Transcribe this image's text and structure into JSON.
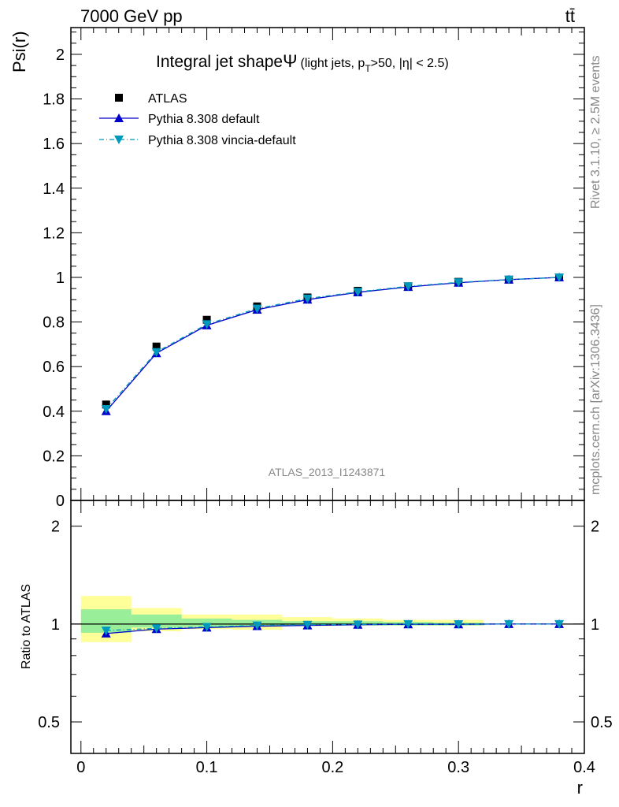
{
  "header": {
    "energy_label": "7000 GeV pp",
    "process_label": "tt̄"
  },
  "side_labels": {
    "rivet": "Rivet 3.1.10, ≥ 2.5M events",
    "mcplots": "mcplots.cern.ch [arXiv:1306.3436]"
  },
  "watermark": "ATLAS_2013_I1243871",
  "chart_data": [
    {
      "type": "line",
      "title_main": "Integral jet shape",
      "title_symbol": "Ψ",
      "title_sub_open": "(light jets, p",
      "title_sub_T": "T",
      "title_sub_close": ">50, |η| < 2.5)",
      "ylabel": "Psi(r)",
      "xlabel": "r",
      "xlim": [
        -0.008,
        0.4
      ],
      "ylim": [
        0,
        2.12
      ],
      "yticks": [
        "0",
        "0.2",
        "0.4",
        "0.6",
        "0.8",
        "1",
        "1.2",
        "1.4",
        "1.6",
        "1.8",
        "2"
      ],
      "legend_position": "top-left",
      "x": [
        0.02,
        0.06,
        0.1,
        0.14,
        0.18,
        0.22,
        0.26,
        0.3,
        0.34,
        0.38
      ],
      "series": [
        {
          "name": "ATLAS",
          "color": "#000000",
          "marker": "square",
          "values": [
            0.43,
            0.69,
            0.81,
            0.87,
            0.91,
            0.94,
            0.96,
            0.98,
            0.99,
            1.0
          ]
        },
        {
          "name": "Pythia 8.308 default",
          "color": "#0000cc",
          "marker": "triangle-up",
          "line": "solid",
          "values": [
            0.4,
            0.66,
            0.785,
            0.855,
            0.9,
            0.933,
            0.957,
            0.976,
            0.99,
            1.0
          ]
        },
        {
          "name": "Pythia 8.308 vincia-default",
          "color": "#0099bb",
          "marker": "triangle-down",
          "line": "dashdot",
          "values": [
            0.41,
            0.665,
            0.79,
            0.86,
            0.905,
            0.935,
            0.96,
            0.978,
            0.99,
            1.0
          ]
        }
      ]
    },
    {
      "type": "line",
      "ylabel": "Ratio to ATLAS",
      "xlabel": "r",
      "xlim": [
        -0.008,
        0.4
      ],
      "ylim": [
        0.4,
        2.4
      ],
      "log_scale_y": true,
      "yticks": [
        "0.5",
        "1",
        "2"
      ],
      "xticks": [
        "0",
        "0.1",
        "0.2",
        "0.3",
        "0.4"
      ],
      "bands": {
        "yellow": {
          "color": "#ffff99",
          "edges": [
            0.0,
            0.04,
            0.08,
            0.12,
            0.16,
            0.2,
            0.24,
            0.28,
            0.32
          ],
          "low": [
            0.88,
            0.95,
            0.965,
            0.96,
            0.985,
            0.99,
            0.99,
            0.99
          ],
          "high": [
            1.22,
            1.12,
            1.07,
            1.07,
            1.05,
            1.04,
            1.03,
            1.03
          ]
        },
        "green": {
          "color": "#99ee99",
          "edges": [
            0.0,
            0.04,
            0.08,
            0.12,
            0.16,
            0.2,
            0.24,
            0.28,
            0.32
          ],
          "low": [
            0.94,
            0.975,
            0.98,
            0.985,
            0.99,
            0.99,
            0.99,
            0.99
          ],
          "high": [
            1.11,
            1.07,
            1.04,
            1.03,
            1.02,
            1.02,
            1.015,
            1.01
          ]
        }
      },
      "x": [
        0.02,
        0.06,
        0.1,
        0.14,
        0.18,
        0.22,
        0.26,
        0.3,
        0.34,
        0.38
      ],
      "series": [
        {
          "name": "Pythia 8.308 default",
          "color": "#0000cc",
          "marker": "triangle-up",
          "values": [
            0.935,
            0.965,
            0.975,
            0.985,
            0.99,
            0.995,
            0.998,
            0.998,
            1.0,
            1.0
          ]
        },
        {
          "name": "Pythia 8.308 vincia-default",
          "color": "#0099bb",
          "marker": "triangle-down",
          "values": [
            0.955,
            0.97,
            0.98,
            0.99,
            0.995,
            0.997,
            1.0,
            0.999,
            1.0,
            1.0
          ]
        }
      ]
    }
  ]
}
